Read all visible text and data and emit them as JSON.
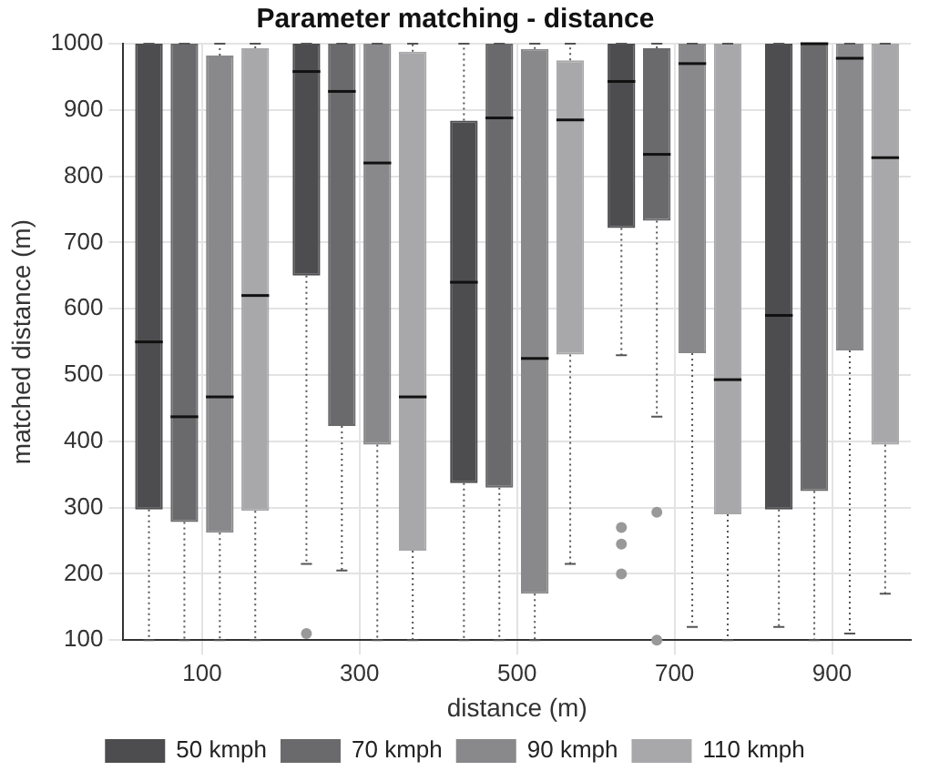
{
  "chart_data": {
    "type": "box",
    "title": "Parameter matching - distance",
    "xlabel": "distance (m)",
    "ylabel": "matched distance (m)",
    "categories": [
      "100",
      "300",
      "500",
      "700",
      "900"
    ],
    "ylim": [
      100,
      1000
    ],
    "yticks": [
      100,
      200,
      300,
      400,
      500,
      600,
      700,
      800,
      900,
      1000
    ],
    "grid": true,
    "legend": "bottom",
    "series": [
      {
        "name": "50 kmph",
        "color": "#4d4d4f",
        "boxes": [
          {
            "low": 100,
            "q1": 297,
            "median": 550,
            "q3": 1000,
            "high": 1000
          },
          {
            "low": 215,
            "q1": 650,
            "median": 958,
            "q3": 1000,
            "high": 1000,
            "outliers": [
              110
            ]
          },
          {
            "low": 100,
            "q1": 337,
            "median": 640,
            "q3": 884,
            "high": 1000
          },
          {
            "low": 530,
            "q1": 722,
            "median": 943,
            "q3": 1000,
            "high": 1000,
            "outliers": [
              270,
              245,
              200
            ]
          },
          {
            "low": 120,
            "q1": 297,
            "median": 590,
            "q3": 1000,
            "high": 1000
          }
        ]
      },
      {
        "name": "70 kmph",
        "color": "#6a6a6c",
        "boxes": [
          {
            "low": 100,
            "q1": 278,
            "median": 437,
            "q3": 1000,
            "high": 1000
          },
          {
            "low": 205,
            "q1": 423,
            "median": 928,
            "q3": 1000,
            "high": 1000
          },
          {
            "low": 100,
            "q1": 330,
            "median": 888,
            "q3": 1000,
            "high": 1000
          },
          {
            "low": 437,
            "q1": 733,
            "median": 833,
            "q3": 993,
            "high": 1000,
            "outliers": [
              293,
              100
            ]
          },
          {
            "low": 100,
            "q1": 325,
            "median": 1000,
            "q3": 1000,
            "high": 1000
          }
        ]
      },
      {
        "name": "90 kmph",
        "color": "#89898b",
        "boxes": [
          {
            "low": 100,
            "q1": 262,
            "median": 467,
            "q3": 982,
            "high": 1000
          },
          {
            "low": 100,
            "q1": 395,
            "median": 820,
            "q3": 1000,
            "high": 1000
          },
          {
            "low": 100,
            "q1": 170,
            "median": 525,
            "q3": 992,
            "high": 1000
          },
          {
            "low": 120,
            "q1": 533,
            "median": 970,
            "q3": 1000,
            "high": 1000
          },
          {
            "low": 110,
            "q1": 537,
            "median": 978,
            "q3": 1000,
            "high": 1000
          }
        ]
      },
      {
        "name": "110 kmph",
        "color": "#a8a8aa",
        "boxes": [
          {
            "low": 100,
            "q1": 295,
            "median": 620,
            "q3": 993,
            "high": 1000
          },
          {
            "low": 100,
            "q1": 235,
            "median": 467,
            "q3": 988,
            "high": 1000
          },
          {
            "low": 215,
            "q1": 531,
            "median": 885,
            "q3": 975,
            "high": 1000
          },
          {
            "low": 100,
            "q1": 290,
            "median": 493,
            "q3": 1000,
            "high": 1000
          },
          {
            "low": 170,
            "q1": 395,
            "median": 828,
            "q3": 1000,
            "high": 1000
          }
        ]
      }
    ]
  }
}
